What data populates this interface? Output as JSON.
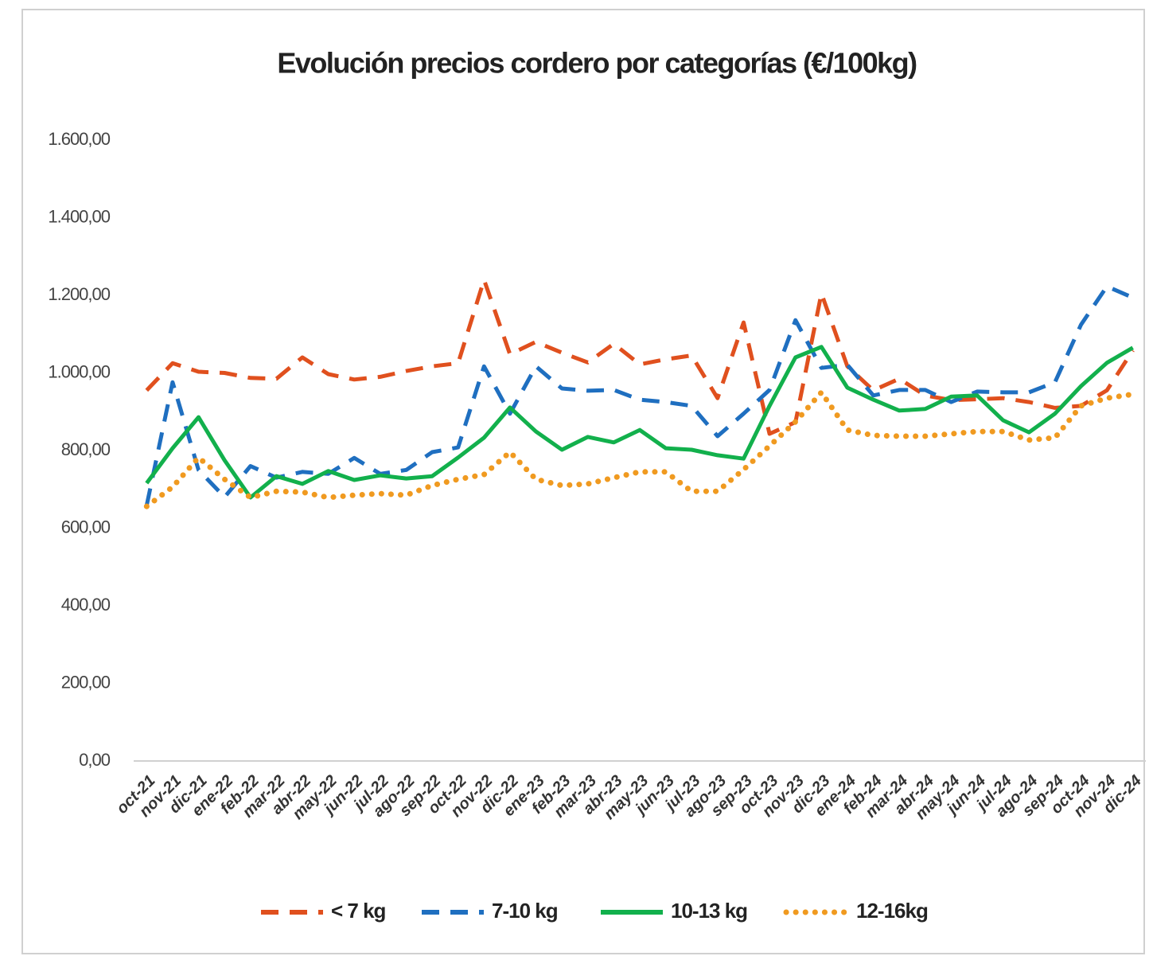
{
  "chart_data": {
    "type": "line",
    "title": "Evolución precios cordero por categorías (€/100kg)",
    "categories": [
      "oct-21",
      "nov-21",
      "dic-21",
      "ene-22",
      "feb-22",
      "mar-22",
      "abr-22",
      "may-22",
      "jun-22",
      "jul-22",
      "ago-22",
      "sep-22",
      "oct-22",
      "nov-22",
      "dic-22",
      "ene-23",
      "feb-23",
      "mar-23",
      "abr-23",
      "may-23",
      "jun-23",
      "jul-23",
      "ago-23",
      "sep-23",
      "oct-23",
      "nov-23",
      "dic-23",
      "ene-24",
      "feb-24",
      "mar-24",
      "abr-24",
      "may-24",
      "jun-24",
      "jul-24",
      "ago-24",
      "sep-24",
      "oct-24",
      "nov-24",
      "dic-24"
    ],
    "series": [
      {
        "name": "< 7 kg",
        "color": "#e0501e",
        "style": "dashed",
        "values": [
          955,
          1025,
          1003,
          1000,
          987,
          985,
          1040,
          997,
          983,
          990,
          1005,
          1017,
          1025,
          1240,
          1048,
          1080,
          1052,
          1027,
          1075,
          1022,
          1035,
          1045,
          935,
          1130,
          843,
          873,
          1205,
          1017,
          955,
          985,
          942,
          930,
          932,
          935,
          925,
          910,
          915,
          955,
          1058
        ]
      },
      {
        "name": "7-10 kg",
        "color": "#1f6fc0",
        "style": "dashed",
        "values": [
          658,
          976,
          750,
          680,
          760,
          730,
          745,
          740,
          781,
          740,
          750,
          796,
          808,
          1017,
          895,
          1017,
          960,
          954,
          956,
          931,
          925,
          915,
          837,
          895,
          956,
          1136,
          1013,
          1021,
          942,
          956,
          956,
          925,
          952,
          950,
          950,
          976,
          1124,
          1223,
          1194
        ]
      },
      {
        "name": "10-13 kg",
        "color": "#12b04c",
        "style": "solid",
        "values": [
          716,
          806,
          886,
          775,
          679,
          734,
          714,
          747,
          724,
          736,
          728,
          734,
          782,
          833,
          911,
          849,
          802,
          835,
          821,
          853,
          806,
          802,
          788,
          779,
          915,
          1040,
          1067,
          962,
          931,
          903,
          907,
          939,
          942,
          878,
          847,
          895,
          966,
          1026,
          1065
        ]
      },
      {
        "name": "12-16kg",
        "color": "#f09a20",
        "style": "dotted",
        "values": [
          656,
          706,
          782,
          726,
          679,
          695,
          693,
          679,
          685,
          689,
          685,
          710,
          726,
          738,
          796,
          726,
          710,
          714,
          730,
          745,
          745,
          695,
          695,
          751,
          812,
          874,
          950,
          853,
          839,
          837,
          837,
          843,
          849,
          849,
          827,
          833,
          915,
          935,
          945
        ]
      }
    ],
    "ylim": [
      0,
      1600
    ],
    "yticks": [
      {
        "value": 0,
        "label": "0,00"
      },
      {
        "value": 200,
        "label": "200,00"
      },
      {
        "value": 400,
        "label": "400,00"
      },
      {
        "value": 600,
        "label": "600,00"
      },
      {
        "value": 800,
        "label": "800,00"
      },
      {
        "value": 1000,
        "label": "1.000,00"
      },
      {
        "value": 1200,
        "label": "1.200,00"
      },
      {
        "value": 1400,
        "label": "1.400,00"
      },
      {
        "value": 1600,
        "label": "1.600,00"
      }
    ],
    "grid": false,
    "legend": "bottom"
  }
}
